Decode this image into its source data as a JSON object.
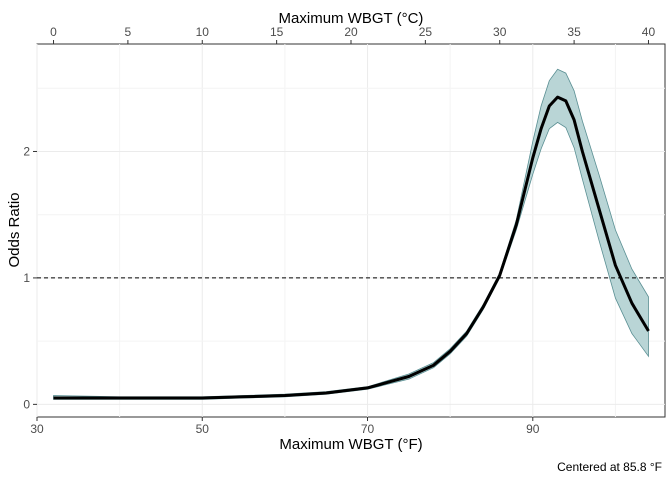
{
  "chart_data": {
    "type": "line",
    "xlabel_bottom": "Maximum WBGT (°F)",
    "xlabel_top": "Maximum WBGT (°C)",
    "ylabel": "Odds Ratio",
    "caption": "Centered at 85.8 °F",
    "xlim_f": [
      30,
      106
    ],
    "ylim": [
      -0.1,
      2.85
    ],
    "xticks_f": [
      30,
      50,
      70,
      90
    ],
    "xticks_c": [
      0,
      5,
      10,
      15,
      20,
      25,
      30,
      35,
      40
    ],
    "yticks": [
      0,
      1,
      2
    ],
    "reference_line_y": 1,
    "grid": true,
    "colors": {
      "line": "#000000",
      "band": "#b9d5d6",
      "band_edge": "#5a8f93"
    },
    "series": [
      {
        "x": [
          32,
          40,
          50,
          55,
          60,
          65,
          70,
          75,
          78,
          80,
          82,
          84,
          86,
          88,
          90,
          91,
          92,
          93,
          94,
          95,
          96,
          98,
          100,
          102,
          104
        ],
        "y": [
          0.05,
          0.05,
          0.05,
          0.06,
          0.07,
          0.09,
          0.13,
          0.22,
          0.31,
          0.42,
          0.56,
          0.77,
          1.02,
          1.42,
          1.95,
          2.18,
          2.36,
          2.43,
          2.4,
          2.25,
          2.0,
          1.55,
          1.1,
          0.8,
          0.58
        ],
        "lower": [
          0.04,
          0.04,
          0.04,
          0.05,
          0.06,
          0.08,
          0.12,
          0.2,
          0.29,
          0.4,
          0.54,
          0.75,
          1.0,
          1.38,
          1.82,
          2.02,
          2.18,
          2.23,
          2.19,
          2.03,
          1.78,
          1.3,
          0.84,
          0.56,
          0.38
        ],
        "upper": [
          0.07,
          0.06,
          0.06,
          0.07,
          0.08,
          0.1,
          0.14,
          0.24,
          0.33,
          0.44,
          0.58,
          0.79,
          1.04,
          1.46,
          2.08,
          2.36,
          2.56,
          2.65,
          2.62,
          2.48,
          2.24,
          1.82,
          1.38,
          1.07,
          0.85
        ]
      }
    ]
  }
}
